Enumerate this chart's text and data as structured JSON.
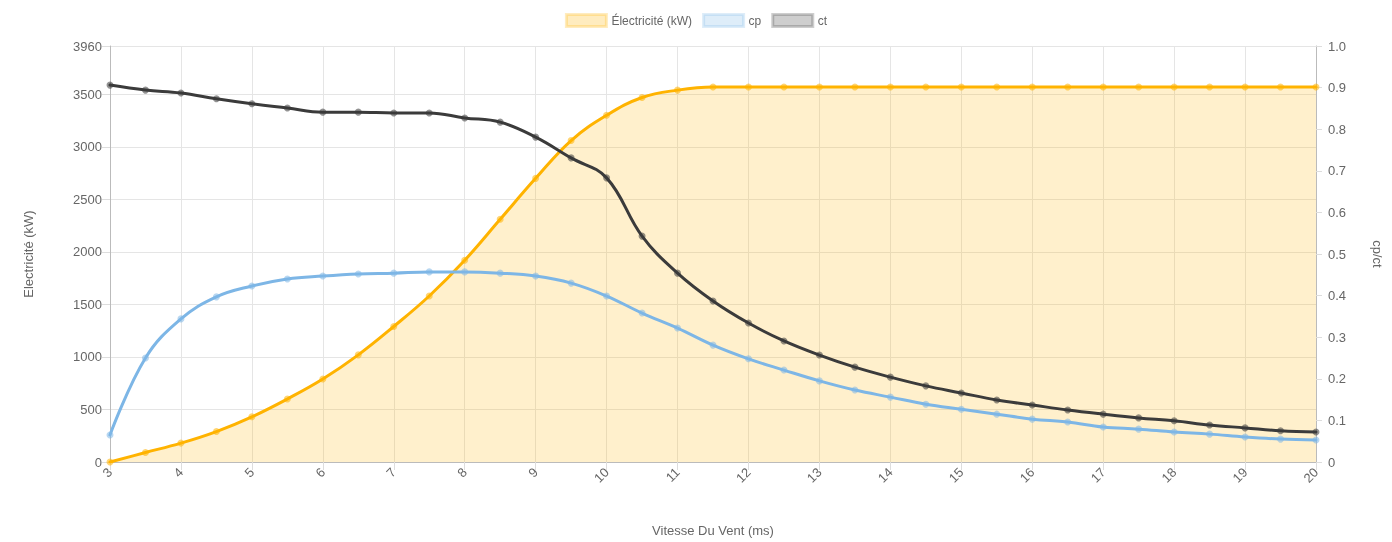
{
  "chart_data": {
    "type": "line",
    "xlabel": "Vitesse Du Vent (ms)",
    "ylabel": "Electricité (kW)",
    "y2label": "cp/ct",
    "x": [
      3,
      3.5,
      4,
      4.5,
      5,
      5.5,
      6,
      6.5,
      7,
      7.5,
      8,
      8.5,
      9,
      9.5,
      10,
      10.5,
      11,
      11.5,
      12,
      12.5,
      13,
      13.5,
      14,
      14.5,
      15,
      15.5,
      16,
      16.5,
      17,
      17.5,
      18,
      18.5,
      19,
      19.5,
      20
    ],
    "series": [
      {
        "name": "Électricité (kW)",
        "type": "area",
        "color": "#ffb300",
        "values": [
          0,
          90,
          180,
          290,
          430,
          600,
          790,
          1020,
          1290,
          1580,
          1920,
          2310,
          2700,
          3060,
          3300,
          3470,
          3540,
          3570,
          3570,
          3570,
          3570,
          3570,
          3570,
          3570,
          3570,
          3570,
          3570,
          3570,
          3570,
          3570,
          3570,
          3570,
          3570,
          3570,
          3570
        ]
      },
      {
        "name": "cp",
        "axis": "y2",
        "color": "#7db6e6",
        "values": [
          0.065,
          0.25,
          0.344,
          0.397,
          0.423,
          0.44,
          0.447,
          0.452,
          0.454,
          0.457,
          0.457,
          0.454,
          0.447,
          0.43,
          0.399,
          0.358,
          0.322,
          0.281,
          0.248,
          0.221,
          0.195,
          0.173,
          0.156,
          0.139,
          0.127,
          0.115,
          0.103,
          0.096,
          0.084,
          0.079,
          0.072,
          0.067,
          0.06,
          0.055,
          0.053
        ]
      },
      {
        "name": "ct",
        "axis": "y2",
        "color": "#3b3b3b",
        "values": [
          0.906,
          0.894,
          0.887,
          0.873,
          0.861,
          0.851,
          0.841,
          0.841,
          0.839,
          0.839,
          0.827,
          0.817,
          0.781,
          0.731,
          0.683,
          0.543,
          0.454,
          0.387,
          0.334,
          0.291,
          0.257,
          0.228,
          0.204,
          0.183,
          0.166,
          0.149,
          0.137,
          0.125,
          0.115,
          0.106,
          0.099,
          0.089,
          0.082,
          0.075,
          0.072
        ]
      }
    ],
    "xlim": [
      3,
      20
    ],
    "xticks": [
      3,
      4,
      5,
      6,
      7,
      8,
      9,
      10,
      11,
      12,
      13,
      14,
      15,
      16,
      17,
      18,
      19,
      20
    ],
    "ylim": [
      0,
      3960
    ],
    "yticks": [
      0,
      500,
      1000,
      1500,
      2000,
      2500,
      3000,
      3500,
      3960
    ],
    "y2lim": [
      0,
      1
    ],
    "y2ticks": [
      0,
      0.1,
      0.2,
      0.3,
      0.4,
      0.5,
      0.6,
      0.7,
      0.8,
      0.9,
      {
        "value": 1,
        "label": "1.0"
      }
    ],
    "grid": true,
    "legend": "top",
    "marker": "circle",
    "line_style": "solid"
  }
}
